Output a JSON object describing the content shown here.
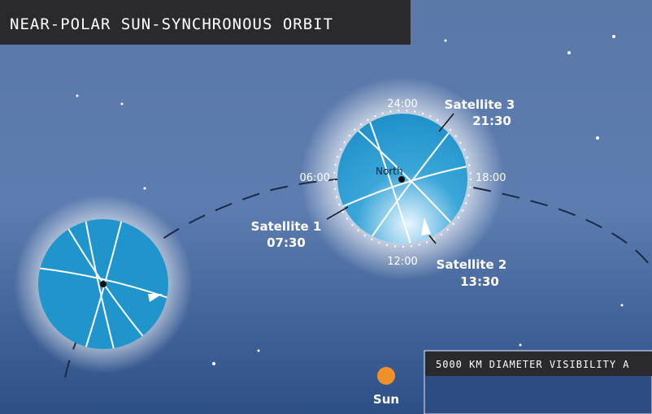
{
  "header": {
    "title": "NEAR-POLAR SUN-SYNCHRONOUS ORBIT"
  },
  "clock": {
    "top": "24:00",
    "left": "06:00",
    "right": "18:00",
    "bottom": "12:00",
    "center": "North"
  },
  "satellites": [
    {
      "name": "Satellite 3",
      "time": "21:30"
    },
    {
      "name": "Satellite 1",
      "time": "07:30"
    },
    {
      "name": "Satellite 2",
      "time": "13:30"
    }
  ],
  "sun": {
    "label": "Sun"
  },
  "panel": {
    "title": "5000 KM DIAMETER VISIBILITY A"
  }
}
